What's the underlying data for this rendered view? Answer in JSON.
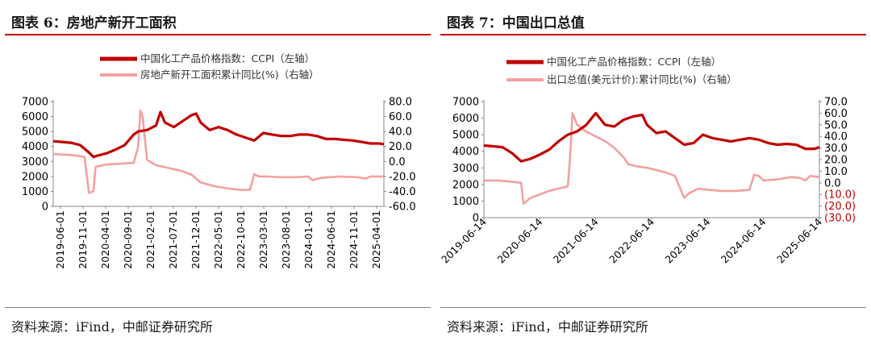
{
  "colors": {
    "ccpi": "#c00000",
    "secondary": "#f4a0a0",
    "red_text": "#c00000"
  },
  "chart_data": [
    {
      "id": "left",
      "type": "line",
      "figure_title": "图表 6：房地产新开工面积",
      "source": "资料来源：iFind，中邮证券研究所",
      "legend": [
        "中国化工产品价格指数：CCPI（左轴）",
        "房地产新开工面积累计同比(%)（右轴）"
      ],
      "x_labels": [
        "2019-06-01",
        "2019-11-01",
        "2020-04-01",
        "2020-09-01",
        "2021-02-01",
        "2021-07-01",
        "2021-12-01",
        "2022-05-01",
        "2022-10-01",
        "2023-03-01",
        "2023-08-01",
        "2024-01-01",
        "2024-06-01",
        "2024-11-01",
        "2025-04-01"
      ],
      "x_range": [
        0,
        74
      ],
      "left_axis": {
        "min": 0,
        "max": 7000,
        "ticks": [
          {
            "v": 0,
            "label": "0"
          },
          {
            "v": 1000,
            "label": "1000"
          },
          {
            "v": 2000,
            "label": "2000"
          },
          {
            "v": 3000,
            "label": "3000"
          },
          {
            "v": 4000,
            "label": "4000"
          },
          {
            "v": 5000,
            "label": "5000"
          },
          {
            "v": 6000,
            "label": "6000"
          },
          {
            "v": 7000,
            "label": "7000"
          }
        ]
      },
      "right_axis": {
        "min": -60,
        "max": 80,
        "ticks": [
          {
            "v": -60,
            "label": "-60.0",
            "red": false
          },
          {
            "v": -40,
            "label": "-40.0",
            "red": false
          },
          {
            "v": -20,
            "label": "-20.0",
            "red": false
          },
          {
            "v": 0,
            "label": "0.0",
            "red": false
          },
          {
            "v": 20,
            "label": "20.0",
            "red": false
          },
          {
            "v": 40,
            "label": "40.0",
            "red": false
          },
          {
            "v": 60,
            "label": "60.0",
            "red": false
          },
          {
            "v": 80,
            "label": "80.0",
            "red": false
          }
        ]
      },
      "series": [
        {
          "name": "CCPI",
          "axis": "left",
          "points": [
            [
              0,
              4350
            ],
            [
              2,
              4300
            ],
            [
              4,
              4250
            ],
            [
              6,
              4100
            ],
            [
              8,
              3600
            ],
            [
              9,
              3300
            ],
            [
              10,
              3400
            ],
            [
              12,
              3550
            ],
            [
              14,
              3800
            ],
            [
              16,
              4100
            ],
            [
              18,
              4800
            ],
            [
              19,
              5000
            ],
            [
              21,
              5100
            ],
            [
              23,
              5400
            ],
            [
              24,
              6300
            ],
            [
              25,
              5600
            ],
            [
              27,
              5300
            ],
            [
              29,
              5700
            ],
            [
              31,
              6100
            ],
            [
              32,
              6200
            ],
            [
              33,
              5600
            ],
            [
              35,
              5100
            ],
            [
              37,
              5300
            ],
            [
              39,
              5100
            ],
            [
              41,
              4800
            ],
            [
              43,
              4600
            ],
            [
              45,
              4400
            ],
            [
              47,
              4900
            ],
            [
              49,
              4800
            ],
            [
              51,
              4700
            ],
            [
              53,
              4700
            ],
            [
              55,
              4800
            ],
            [
              57,
              4800
            ],
            [
              59,
              4700
            ],
            [
              61,
              4500
            ],
            [
              63,
              4500
            ],
            [
              65,
              4450
            ],
            [
              67,
              4400
            ],
            [
              69,
              4300
            ],
            [
              71,
              4200
            ],
            [
              73,
              4200
            ],
            [
              74,
              4150
            ]
          ]
        },
        {
          "name": "房地产新开工面积累计同比",
          "axis": "right",
          "points": [
            [
              0,
              10
            ],
            [
              3,
              9
            ],
            [
              5,
              8
            ],
            [
              7,
              6
            ],
            [
              8,
              -42
            ],
            [
              9,
              -40
            ],
            [
              9.5,
              -7
            ],
            [
              12,
              -4
            ],
            [
              15,
              -3
            ],
            [
              18,
              -2
            ],
            [
              19,
              20
            ],
            [
              19.5,
              68
            ],
            [
              20,
              60
            ],
            [
              21,
              2
            ],
            [
              23,
              -5
            ],
            [
              26,
              -9
            ],
            [
              29,
              -13
            ],
            [
              31,
              -18
            ],
            [
              33,
              -28
            ],
            [
              36,
              -33
            ],
            [
              39,
              -36
            ],
            [
              42,
              -38
            ],
            [
              44,
              -38
            ],
            [
              45,
              -17
            ],
            [
              46,
              -20
            ],
            [
              48,
              -20
            ],
            [
              51,
              -21
            ],
            [
              54,
              -21
            ],
            [
              57,
              -20
            ],
            [
              58,
              -25
            ],
            [
              60,
              -22
            ],
            [
              64,
              -20
            ],
            [
              68,
              -21
            ],
            [
              70,
              -23
            ],
            [
              71,
              -20
            ],
            [
              74,
              -20
            ]
          ]
        }
      ]
    },
    {
      "id": "right",
      "type": "line",
      "figure_title": "图表 7：中国出口总值",
      "source": "资料来源：iFind，中邮证券研究所",
      "legend": [
        "中国化工产品价格指数：CCPI（左轴）",
        "出口总值(美元计价):累计同比(%)（右轴）"
      ],
      "x_labels": [
        "2019-06-14",
        "2020-06-14",
        "2021-06-14",
        "2022-06-14",
        "2023-06-14",
        "2024-06-14",
        "2025-06-14"
      ],
      "x_range": [
        0,
        72
      ],
      "left_axis": {
        "min": 0,
        "max": 7000,
        "ticks": [
          {
            "v": 0,
            "label": "0"
          },
          {
            "v": 1000,
            "label": "1000"
          },
          {
            "v": 2000,
            "label": "2000"
          },
          {
            "v": 3000,
            "label": "3000"
          },
          {
            "v": 4000,
            "label": "4000"
          },
          {
            "v": 5000,
            "label": "5000"
          },
          {
            "v": 6000,
            "label": "6000"
          },
          {
            "v": 7000,
            "label": "7000"
          }
        ]
      },
      "right_axis": {
        "min": -30,
        "max": 70,
        "ticks": [
          {
            "v": -30,
            "label": "(30.0)",
            "red": true
          },
          {
            "v": -20,
            "label": "(20.0)",
            "red": true
          },
          {
            "v": -10,
            "label": "(10.0)",
            "red": true
          },
          {
            "v": 0,
            "label": "0.0",
            "red": false
          },
          {
            "v": 10,
            "label": "10.0",
            "red": false
          },
          {
            "v": 20,
            "label": "20.0",
            "red": false
          },
          {
            "v": 30,
            "label": "30.0",
            "red": false
          },
          {
            "v": 40,
            "label": "40.0",
            "red": false
          },
          {
            "v": 50,
            "label": "50.0",
            "red": false
          },
          {
            "v": 60,
            "label": "60.0",
            "red": false
          },
          {
            "v": 70,
            "label": "70.0",
            "red": false
          }
        ]
      },
      "series": [
        {
          "name": "CCPI",
          "axis": "left",
          "points": [
            [
              0,
              4350
            ],
            [
              2,
              4300
            ],
            [
              4,
              4250
            ],
            [
              6,
              3900
            ],
            [
              8,
              3400
            ],
            [
              10,
              3550
            ],
            [
              12,
              3800
            ],
            [
              14,
              4100
            ],
            [
              16,
              4600
            ],
            [
              18,
              5000
            ],
            [
              20,
              5200
            ],
            [
              22,
              5600
            ],
            [
              24,
              6300
            ],
            [
              26,
              5600
            ],
            [
              28,
              5500
            ],
            [
              30,
              5900
            ],
            [
              32,
              6100
            ],
            [
              34,
              6200
            ],
            [
              35,
              5600
            ],
            [
              37,
              5100
            ],
            [
              39,
              5200
            ],
            [
              41,
              4800
            ],
            [
              43,
              4400
            ],
            [
              45,
              4500
            ],
            [
              47,
              5000
            ],
            [
              49,
              4800
            ],
            [
              51,
              4700
            ],
            [
              53,
              4600
            ],
            [
              55,
              4700
            ],
            [
              57,
              4800
            ],
            [
              59,
              4700
            ],
            [
              61,
              4500
            ],
            [
              63,
              4400
            ],
            [
              65,
              4450
            ],
            [
              67,
              4400
            ],
            [
              69,
              4150
            ],
            [
              71,
              4150
            ],
            [
              72,
              4250
            ]
          ]
        },
        {
          "name": "出口总值累计同比",
          "axis": "right",
          "points": [
            [
              0,
              2
            ],
            [
              3,
              2
            ],
            [
              6,
              1
            ],
            [
              8,
              0
            ],
            [
              8.5,
              -18
            ],
            [
              10,
              -13
            ],
            [
              12,
              -10
            ],
            [
              14,
              -7
            ],
            [
              16,
              -5
            ],
            [
              18,
              -3
            ],
            [
              18.5,
              22
            ],
            [
              19,
              60
            ],
            [
              20,
              50
            ],
            [
              22,
              44
            ],
            [
              24,
              40
            ],
            [
              26,
              36
            ],
            [
              28,
              30
            ],
            [
              30,
              22
            ],
            [
              31,
              16
            ],
            [
              33,
              14
            ],
            [
              35,
              13
            ],
            [
              37,
              11
            ],
            [
              39,
              9
            ],
            [
              41,
              6
            ],
            [
              43,
              -13
            ],
            [
              44,
              -9
            ],
            [
              46,
              -5
            ],
            [
              48,
              -6
            ],
            [
              51,
              -7
            ],
            [
              54,
              -7
            ],
            [
              57,
              -6
            ],
            [
              58,
              7
            ],
            [
              59,
              6
            ],
            [
              60,
              2
            ],
            [
              63,
              3
            ],
            [
              66,
              5
            ],
            [
              68,
              4
            ],
            [
              69,
              2
            ],
            [
              70,
              6
            ],
            [
              72,
              5
            ]
          ]
        }
      ]
    }
  ]
}
